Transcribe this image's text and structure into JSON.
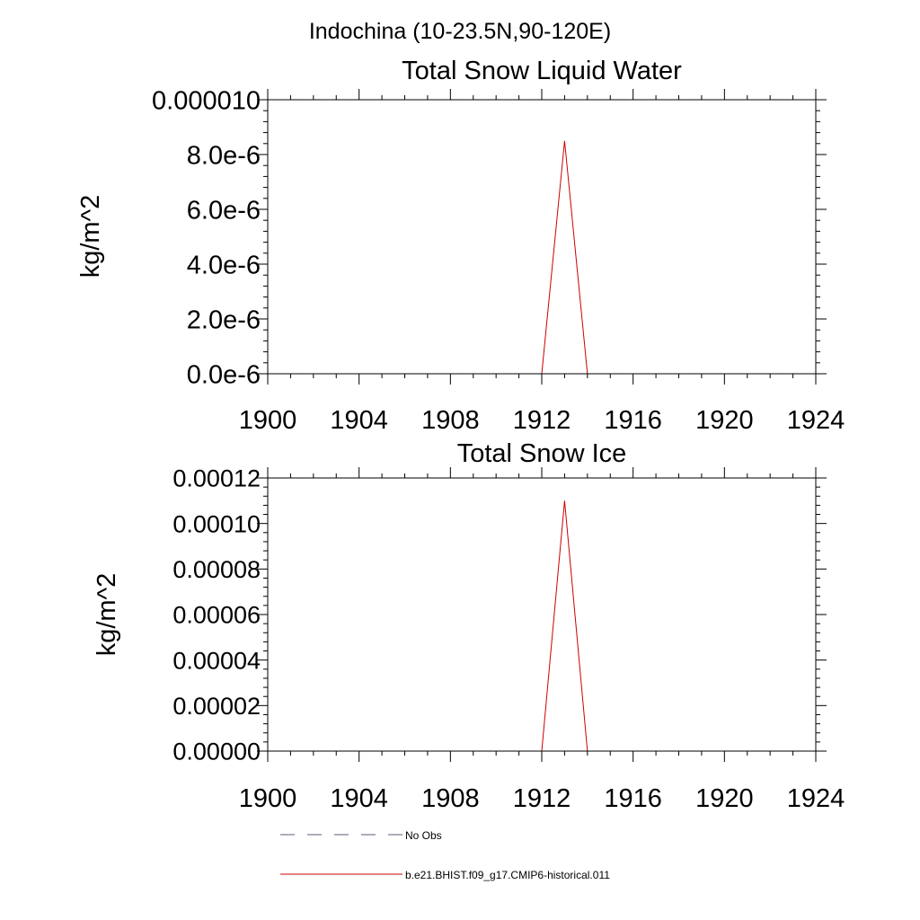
{
  "figure": {
    "region_title": "Indochina (10-23.5N,90-120E)"
  },
  "colors": {
    "model_line": "#cc0000",
    "obs_line": "#5a5a7a",
    "axis": "#000000"
  },
  "chart_data": [
    {
      "type": "line",
      "title": "Total Snow Liquid Water",
      "xlabel": "",
      "ylabel": "kg/m^2",
      "xlim": [
        1900,
        1924
      ],
      "ylim": [
        0,
        1e-05
      ],
      "x_ticks": [
        1900,
        1904,
        1908,
        1912,
        1916,
        1920,
        1924
      ],
      "x_tick_labels": [
        "1900",
        "1904",
        "1908",
        "1912",
        "1916",
        "1920",
        "1924"
      ],
      "y_ticks": [
        0,
        2e-06,
        4e-06,
        6e-06,
        8e-06,
        1e-05
      ],
      "y_tick_labels": [
        "0.0e-6",
        "2.0e-6",
        "4.0e-6",
        "6.0e-6",
        "8.0e-6",
        "0.000010"
      ],
      "grid": false,
      "series": [
        {
          "name": "b.e21.BHIST.f09_g17.CMIP6-historical.011",
          "x": [
            1900,
            1901,
            1902,
            1903,
            1904,
            1905,
            1906,
            1907,
            1908,
            1909,
            1910,
            1911,
            1912,
            1913,
            1914,
            1915,
            1916,
            1917,
            1918,
            1919,
            1920,
            1921,
            1922,
            1923,
            1924
          ],
          "values": [
            0,
            0,
            0,
            0,
            0,
            0,
            0,
            0,
            0,
            0,
            0,
            0,
            0,
            8.5e-06,
            0,
            0,
            0,
            0,
            0,
            0,
            0,
            0,
            0,
            0,
            0
          ]
        }
      ]
    },
    {
      "type": "line",
      "title": "Total Snow Ice",
      "xlabel": "",
      "ylabel": "kg/m^2",
      "xlim": [
        1900,
        1924
      ],
      "ylim": [
        0,
        0.00012
      ],
      "x_ticks": [
        1900,
        1904,
        1908,
        1912,
        1916,
        1920,
        1924
      ],
      "x_tick_labels": [
        "1900",
        "1904",
        "1908",
        "1912",
        "1916",
        "1920",
        "1924"
      ],
      "y_ticks": [
        0,
        2e-05,
        4e-05,
        6e-05,
        8e-05,
        0.0001,
        0.00012
      ],
      "y_tick_labels": [
        "0.00000",
        "0.00002",
        "0.00004",
        "0.00006",
        "0.00008",
        "0.00010",
        "0.00012"
      ],
      "grid": false,
      "series": [
        {
          "name": "b.e21.BHIST.f09_g17.CMIP6-historical.011",
          "x": [
            1900,
            1901,
            1902,
            1903,
            1904,
            1905,
            1906,
            1907,
            1908,
            1909,
            1910,
            1911,
            1912,
            1913,
            1914,
            1915,
            1916,
            1917,
            1918,
            1919,
            1920,
            1921,
            1922,
            1923,
            1924
          ],
          "values": [
            0,
            0,
            0,
            0,
            0,
            0,
            0,
            0,
            0,
            0,
            0,
            0,
            0,
            0.00011,
            0,
            0,
            0,
            0,
            0,
            0,
            0,
            0,
            0,
            0,
            0
          ]
        }
      ]
    }
  ],
  "legend": {
    "placement": "bottom-left",
    "entries": [
      {
        "label": "No Obs",
        "style": "dashed",
        "color": "#5a5a7a"
      },
      {
        "label": "b.e21.BHIST.f09_g17.CMIP6-historical.011",
        "style": "solid",
        "color": "#cc0000"
      }
    ]
  }
}
